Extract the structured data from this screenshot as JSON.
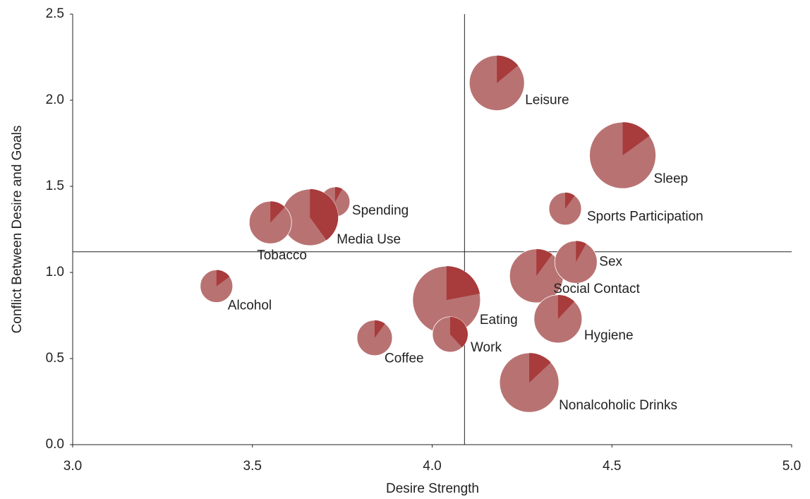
{
  "chart_data": {
    "type": "scatter",
    "x_label": "Desire Strength",
    "y_label": "Conflict Between Desire and Goals",
    "labels": [
      "Leisure",
      "Sleep",
      "Sports Participation",
      "Spending",
      "Media Use",
      "Tobacco",
      "Alcohol",
      "Eating",
      "Coffee",
      "Work",
      "Social Contact",
      "Sex",
      "Hygiene",
      "Nonalcoholic Drinks"
    ],
    "x": [
      4.18,
      4.53,
      4.37,
      3.73,
      3.66,
      3.55,
      3.4,
      4.04,
      3.84,
      4.05,
      4.29,
      4.4,
      4.35,
      4.27
    ],
    "y": [
      2.1,
      1.68,
      1.37,
      1.41,
      1.32,
      1.29,
      0.92,
      0.84,
      0.62,
      0.64,
      0.98,
      1.06,
      0.73,
      0.36
    ],
    "sizes": [
      39,
      47,
      23,
      21,
      40,
      30,
      23,
      48,
      25,
      25,
      38,
      30,
      34,
      42
    ],
    "shares": [
      14,
      15,
      10,
      8,
      40,
      12,
      15,
      22,
      10,
      38,
      10,
      8,
      12,
      13
    ],
    "color": "#b97272",
    "share_color": "#a83b3b",
    "x_ref": 4.09,
    "y_ref": 1.12,
    "xlim": [
      3.0,
      5.0
    ],
    "ylim": [
      0.0,
      2.5
    ],
    "xticks": [
      {
        "value": 3,
        "label": "3.0"
      },
      {
        "value": 3.5,
        "label": "3.5"
      },
      {
        "value": 4,
        "label": "4.0"
      },
      {
        "value": 4.5,
        "label": "4.5"
      },
      {
        "value": 5,
        "label": "5.0"
      }
    ],
    "yticks": [
      {
        "value": 0,
        "label": "0.0"
      },
      {
        "value": 0.5,
        "label": "0.5"
      },
      {
        "value": 1,
        "label": "1.0"
      },
      {
        "value": 1.5,
        "label": "1.5"
      },
      {
        "value": 2,
        "label": "2.0"
      },
      {
        "value": 2.5,
        "label": "2.5"
      }
    ]
  }
}
